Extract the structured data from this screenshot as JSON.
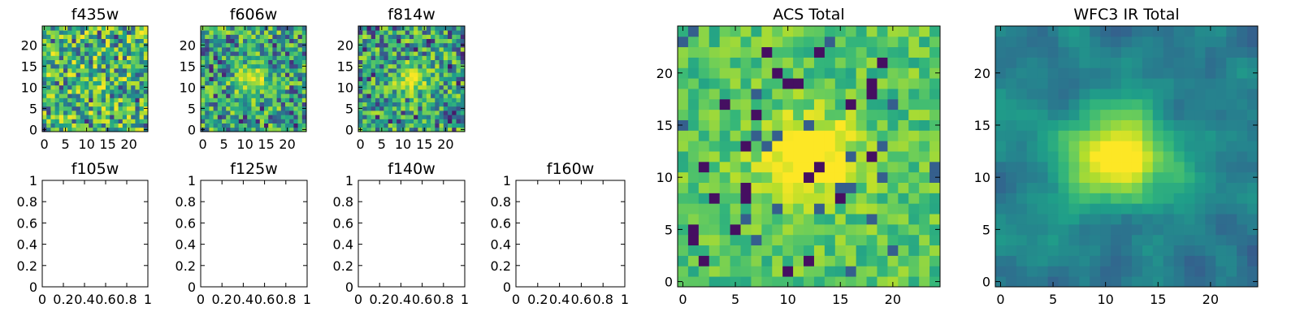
{
  "chart_data": [
    {
      "type": "heatmap",
      "title": "f435w",
      "pattern": "noise",
      "xlim": [
        -0.5,
        24.5
      ],
      "ylim": [
        -0.5,
        24.5
      ],
      "xticks": [
        0,
        5,
        10,
        15,
        20
      ],
      "yticks": [
        0,
        5,
        10,
        15,
        20
      ],
      "grid": false,
      "colormap": "viridis"
    },
    {
      "type": "heatmap",
      "title": "f606w",
      "pattern": "faint_source",
      "xlim": [
        -0.5,
        24.5
      ],
      "ylim": [
        -0.5,
        24.5
      ],
      "xticks": [
        0,
        5,
        10,
        15,
        20
      ],
      "yticks": [
        0,
        5,
        10,
        15,
        20
      ],
      "grid": false,
      "colormap": "viridis"
    },
    {
      "type": "heatmap",
      "title": "f814w",
      "pattern": "faint_source",
      "xlim": [
        -0.5,
        24.5
      ],
      "ylim": [
        -0.5,
        24.5
      ],
      "xticks": [
        0,
        5,
        10,
        15,
        20
      ],
      "yticks": [
        0,
        5,
        10,
        15,
        20
      ],
      "grid": false,
      "colormap": "viridis"
    },
    {
      "type": "heatmap",
      "title": "f105w",
      "empty": true,
      "xlim": [
        0,
        1
      ],
      "ylim": [
        0,
        1
      ],
      "xticks": [
        0.0,
        0.2,
        0.4,
        0.6,
        0.8,
        1.0
      ],
      "yticks": [
        0.0,
        0.2,
        0.4,
        0.6,
        0.8,
        1.0
      ],
      "grid": false
    },
    {
      "type": "heatmap",
      "title": "f125w",
      "empty": true,
      "xlim": [
        0,
        1
      ],
      "ylim": [
        0,
        1
      ],
      "xticks": [
        0.0,
        0.2,
        0.4,
        0.6,
        0.8,
        1.0
      ],
      "yticks": [
        0.0,
        0.2,
        0.4,
        0.6,
        0.8,
        1.0
      ],
      "grid": false
    },
    {
      "type": "heatmap",
      "title": "f140w",
      "empty": true,
      "xlim": [
        0,
        1
      ],
      "ylim": [
        0,
        1
      ],
      "xticks": [
        0.0,
        0.2,
        0.4,
        0.6,
        0.8,
        1.0
      ],
      "yticks": [
        0.0,
        0.2,
        0.4,
        0.6,
        0.8,
        1.0
      ],
      "grid": false
    },
    {
      "type": "heatmap",
      "title": "f160w",
      "empty": true,
      "xlim": [
        0,
        1
      ],
      "ylim": [
        0,
        1
      ],
      "xticks": [
        0.0,
        0.2,
        0.4,
        0.6,
        0.8,
        1.0
      ],
      "yticks": [
        0.0,
        0.2,
        0.4,
        0.6,
        0.8,
        1.0
      ],
      "grid": false
    },
    {
      "type": "heatmap",
      "title": "ACS Total",
      "pattern": "source",
      "xlim": [
        -0.5,
        24.5
      ],
      "ylim": [
        -0.5,
        24.5
      ],
      "xticks": [
        0,
        5,
        10,
        15,
        20
      ],
      "yticks": [
        0,
        5,
        10,
        15,
        20
      ],
      "grid": false,
      "colormap": "viridis"
    },
    {
      "type": "heatmap",
      "title": "WFC3 IR Total",
      "pattern": "smooth_source",
      "xlim": [
        -0.5,
        24.5
      ],
      "ylim": [
        -0.5,
        24.5
      ],
      "xticks": [
        0,
        5,
        10,
        15,
        20
      ],
      "yticks": [
        0,
        5,
        10,
        15,
        20
      ],
      "grid": false,
      "colormap": "viridis"
    }
  ]
}
